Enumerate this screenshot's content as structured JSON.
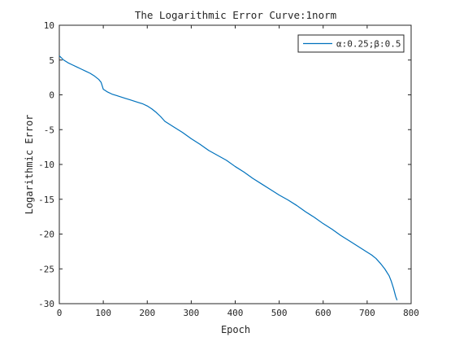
{
  "chart_data": {
    "type": "line",
    "title": "The Logarithmic Error Curve:1norm",
    "xlabel": "Epoch",
    "ylabel": "Logarithmic Error",
    "xlim": [
      0,
      800
    ],
    "ylim": [
      -30,
      10
    ],
    "xticks": [
      "0",
      "100",
      "200",
      "300",
      "400",
      "500",
      "600",
      "700",
      "800"
    ],
    "yticks": [
      "10",
      "5",
      "0",
      "-5",
      "-10",
      "-15",
      "-20",
      "-25",
      "-30"
    ],
    "grid": false,
    "legend_position": "top-right",
    "series": [
      {
        "name": "α:0.25;β:0.5",
        "color": "#0072bd",
        "x": [
          0,
          10,
          20,
          30,
          40,
          50,
          60,
          70,
          80,
          90,
          95,
          98,
          100,
          110,
          120,
          130,
          140,
          150,
          160,
          170,
          180,
          190,
          200,
          210,
          220,
          230,
          240,
          260,
          280,
          300,
          320,
          340,
          360,
          380,
          400,
          420,
          440,
          460,
          480,
          500,
          520,
          540,
          560,
          580,
          600,
          620,
          640,
          660,
          680,
          700,
          710,
          720,
          730,
          740,
          750,
          755,
          760,
          765,
          768
        ],
        "y": [
          5.6,
          5.0,
          4.6,
          4.3,
          4.0,
          3.7,
          3.4,
          3.1,
          2.7,
          2.2,
          1.8,
          1.2,
          0.8,
          0.4,
          0.1,
          -0.1,
          -0.3,
          -0.5,
          -0.7,
          -0.9,
          -1.1,
          -1.3,
          -1.6,
          -2.0,
          -2.5,
          -3.1,
          -3.8,
          -4.6,
          -5.4,
          -6.3,
          -7.1,
          -8.0,
          -8.7,
          -9.4,
          -10.3,
          -11.1,
          -12.0,
          -12.8,
          -13.6,
          -14.4,
          -15.1,
          -15.9,
          -16.8,
          -17.6,
          -18.5,
          -19.3,
          -20.2,
          -21.0,
          -21.8,
          -22.6,
          -23.0,
          -23.5,
          -24.2,
          -25.0,
          -26.0,
          -26.8,
          -27.8,
          -29.0,
          -29.5
        ]
      }
    ]
  }
}
